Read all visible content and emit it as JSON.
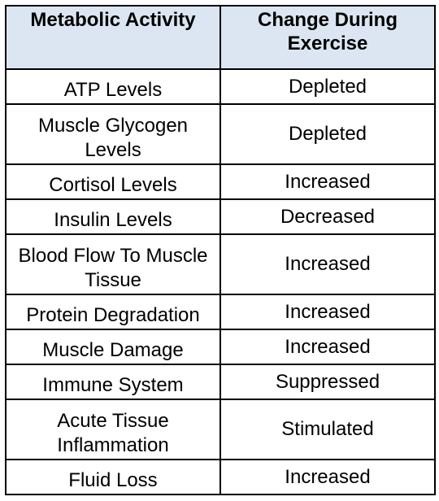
{
  "table": {
    "headers": [
      "Metabolic Activity",
      "Change During Exercise"
    ],
    "rows": [
      {
        "activity": "ATP Levels",
        "change": "Depleted"
      },
      {
        "activity": "Muscle Glycogen Levels",
        "change": "Depleted"
      },
      {
        "activity": "Cortisol Levels",
        "change": "Increased"
      },
      {
        "activity": "Insulin Levels",
        "change": "Decreased"
      },
      {
        "activity": "Blood Flow To Muscle Tissue",
        "change": "Increased"
      },
      {
        "activity": "Protein Degradation",
        "change": "Increased"
      },
      {
        "activity": "Muscle Damage",
        "change": "Increased"
      },
      {
        "activity": "Immune System",
        "change": "Suppressed"
      },
      {
        "activity": "Acute Tissue Inflammation",
        "change": "Stimulated"
      },
      {
        "activity": "Fluid Loss",
        "change": "Increased"
      }
    ]
  },
  "colors": {
    "header_background": "#dce6f2",
    "border": "#000000",
    "text": "#000000"
  }
}
